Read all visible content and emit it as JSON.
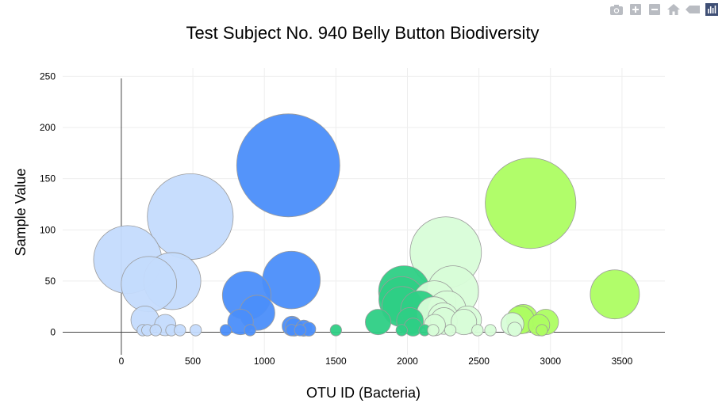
{
  "modebar": {
    "buttons": [
      {
        "name": "camera-icon",
        "title": "Download plot as a png"
      },
      {
        "name": "zoom-in-icon",
        "title": "Zoom in"
      },
      {
        "name": "zoom-out-icon",
        "title": "Zoom out"
      },
      {
        "name": "home-icon",
        "title": "Reset axes"
      },
      {
        "name": "hover-closest-icon",
        "title": "Show closest data on hover"
      },
      {
        "name": "plotly-logo-icon",
        "title": "Produced with Plotly"
      }
    ]
  },
  "chart_data": {
    "type": "scatter",
    "variant": "bubble",
    "title": "Test Subject No. 940 Belly Button Biodiversity",
    "xlabel": "OTU ID (Bacteria)",
    "ylabel": "Sample Value",
    "xlim": [
      -410,
      3800
    ],
    "ylim": [
      -22,
      258
    ],
    "xticks": [
      0,
      500,
      1000,
      1500,
      2000,
      2500,
      3000,
      3500
    ],
    "yticks": [
      0,
      50,
      100,
      150,
      200,
      250
    ],
    "xtick_labels": [
      "0",
      "500",
      "1000",
      "1500",
      "2000",
      "2500",
      "3000",
      "3500"
    ],
    "ytick_labels": [
      "0",
      "50",
      "100",
      "150",
      "200",
      "250"
    ],
    "grid": true,
    "bubble_scale": "size proportional to sample value",
    "points": [
      {
        "x": 44,
        "y": 71,
        "color": "#c4dbfd"
      },
      {
        "x": 193,
        "y": 47,
        "color": "#c4dbfd"
      },
      {
        "x": 356,
        "y": 50,
        "color": "#c4dbfd"
      },
      {
        "x": 482,
        "y": 113,
        "color": "#c4dbfd"
      },
      {
        "x": 165,
        "y": 12,
        "color": "#c4dbfd"
      },
      {
        "x": 307,
        "y": 7,
        "color": "#c4dbfd"
      },
      {
        "x": 1167,
        "y": 163,
        "color": "#4b8efa"
      },
      {
        "x": 1189,
        "y": 51,
        "color": "#4b8efa"
      },
      {
        "x": 876,
        "y": 36,
        "color": "#4b8efa"
      },
      {
        "x": 950,
        "y": 19,
        "color": "#4b8efa"
      },
      {
        "x": 833,
        "y": 10,
        "color": "#4b8efa"
      },
      {
        "x": 1193,
        "y": 6,
        "color": "#4b8efa"
      },
      {
        "x": 1208,
        "y": 5,
        "color": "#4b8efa"
      },
      {
        "x": 1275,
        "y": 4,
        "color": "#4b8efa"
      },
      {
        "x": 1310,
        "y": 3,
        "color": "#4b8efa"
      },
      {
        "x": 1977,
        "y": 40,
        "color": "#2ecf85"
      },
      {
        "x": 1960,
        "y": 32,
        "color": "#2ecf85"
      },
      {
        "x": 1963,
        "y": 25,
        "color": "#2ecf85"
      },
      {
        "x": 2085,
        "y": 22,
        "color": "#2ecf85"
      },
      {
        "x": 2018,
        "y": 11,
        "color": "#2ecf85"
      },
      {
        "x": 1795,
        "y": 10,
        "color": "#2ecf85"
      },
      {
        "x": 2039,
        "y": 5,
        "color": "#2ecf85"
      },
      {
        "x": 2268,
        "y": 78,
        "color": "#d8fdd8"
      },
      {
        "x": 2318,
        "y": 40,
        "color": "#d8fdd8"
      },
      {
        "x": 2188,
        "y": 29,
        "color": "#d8fdd8"
      },
      {
        "x": 2277,
        "y": 22,
        "color": "#d8fdd8"
      },
      {
        "x": 2185,
        "y": 18,
        "color": "#d8fdd8"
      },
      {
        "x": 2250,
        "y": 14,
        "color": "#d8fdd8"
      },
      {
        "x": 2420,
        "y": 12,
        "color": "#d8fdd8"
      },
      {
        "x": 2395,
        "y": 10,
        "color": "#d8fdd8"
      },
      {
        "x": 2255,
        "y": 11,
        "color": "#d8fdd8"
      },
      {
        "x": 2191,
        "y": 7,
        "color": "#d8fdd8"
      },
      {
        "x": 2734,
        "y": 8,
        "color": "#d8fdd8"
      },
      {
        "x": 2861,
        "y": 126,
        "color": "#adfd62"
      },
      {
        "x": 3450,
        "y": 37,
        "color": "#adfd62"
      },
      {
        "x": 2810,
        "y": 13,
        "color": "#adfd62"
      },
      {
        "x": 2790,
        "y": 12,
        "color": "#adfd62"
      },
      {
        "x": 2967,
        "y": 10,
        "color": "#adfd62"
      },
      {
        "x": 2920,
        "y": 7,
        "color": "#adfd62"
      },
      {
        "x": 150,
        "y": 2,
        "color": "#c4dbfd"
      },
      {
        "x": 182,
        "y": 2,
        "color": "#c4dbfd"
      },
      {
        "x": 240,
        "y": 2,
        "color": "#c4dbfd"
      },
      {
        "x": 350,
        "y": 2,
        "color": "#c4dbfd"
      },
      {
        "x": 410,
        "y": 2,
        "color": "#c4dbfd"
      },
      {
        "x": 520,
        "y": 2,
        "color": "#c4dbfd"
      },
      {
        "x": 730,
        "y": 2,
        "color": "#4b8efa"
      },
      {
        "x": 900,
        "y": 2,
        "color": "#4b8efa"
      },
      {
        "x": 1190,
        "y": 2,
        "color": "#4b8efa"
      },
      {
        "x": 1250,
        "y": 2,
        "color": "#4b8efa"
      },
      {
        "x": 1500,
        "y": 2,
        "color": "#2ecf85"
      },
      {
        "x": 1960,
        "y": 2,
        "color": "#2ecf85"
      },
      {
        "x": 2120,
        "y": 2,
        "color": "#2ecf85"
      },
      {
        "x": 2180,
        "y": 2,
        "color": "#d8fdd8"
      },
      {
        "x": 2300,
        "y": 2,
        "color": "#d8fdd8"
      },
      {
        "x": 2490,
        "y": 2,
        "color": "#d8fdd8"
      },
      {
        "x": 2580,
        "y": 2,
        "color": "#d8fdd8"
      },
      {
        "x": 2750,
        "y": 3,
        "color": "#d8fdd8"
      },
      {
        "x": 2940,
        "y": 2,
        "color": "#adfd62"
      }
    ]
  }
}
